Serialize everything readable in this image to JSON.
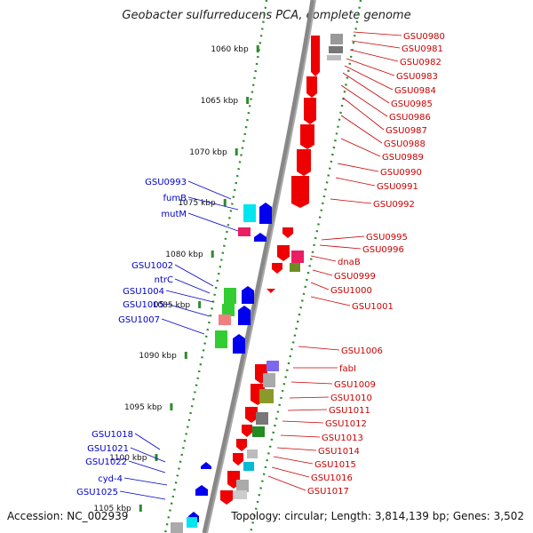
{
  "title": "Geobacter sulfurreducens PCA, complete genome",
  "footer": {
    "accession_label": "Accession:",
    "accession": "NC_002939",
    "topology_label": "Topology:",
    "topology": "circular",
    "length_label": "Length:",
    "length": "3,814,139 bp",
    "genes_label": "Genes:",
    "genes": "3,502"
  },
  "scale_ticks": [
    "1060 kbp",
    "1065 kbp",
    "1070 kbp",
    "1075 kbp",
    "1080 kbp",
    "1085 kbp",
    "1090 kbp",
    "1095 kbp",
    "1100 kbp",
    "1105 kbp"
  ],
  "left_labels": [
    "GSU0993",
    "fumB",
    "mutM",
    "GSU1002",
    "ntrC",
    "GSU1004",
    "GSU1005",
    "GSU1007",
    "GSU1018",
    "GSU1021",
    "GSU1022",
    "cyd-4",
    "GSU1025"
  ],
  "right_labels": [
    "GSU0980",
    "GSU0981",
    "GSU0982",
    "GSU0983",
    "GSU0984",
    "GSU0985",
    "GSU0986",
    "GSU0987",
    "GSU0988",
    "GSU0989",
    "GSU0990",
    "GSU0991",
    "GSU0992",
    "GSU0995",
    "GSU0996",
    "dnaB",
    "GSU0999",
    "GSU1000",
    "GSU1001",
    "GSU1006",
    "fabI",
    "GSU1009",
    "GSU1010",
    "GSU1011",
    "GSU1012",
    "GSU1013",
    "GSU1014",
    "GSU1015",
    "GSU1016",
    "GSU1017"
  ],
  "colors": {
    "forward": "#0000ee",
    "reverse": "#ee0000",
    "backbone": "#777777",
    "tick": "#2e8b2e",
    "label_left": "#0000cc",
    "label_right": "#cc0000"
  }
}
